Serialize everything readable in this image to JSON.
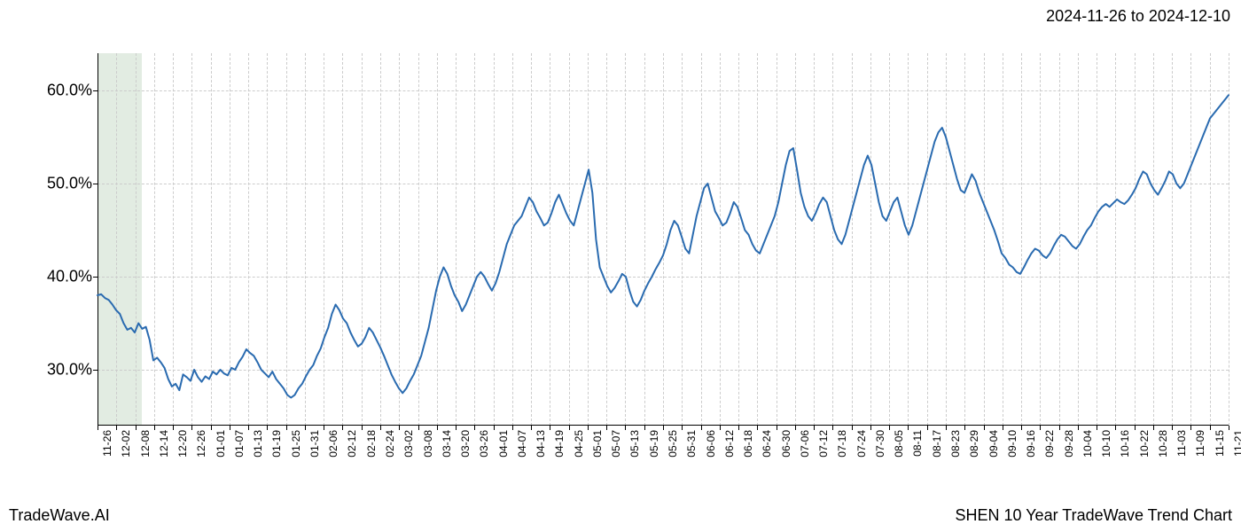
{
  "header": {
    "date_range": "2024-11-26 to 2024-12-10"
  },
  "footer": {
    "brand": "TradeWave.AI",
    "chart_title": "SHEN 10 Year TradeWave Trend Chart"
  },
  "chart": {
    "type": "line",
    "background_color": "#ffffff",
    "grid_color": "#cccccc",
    "axis_color": "#000000",
    "line_color": "#2a6bb0",
    "line_width": 2.0,
    "highlight_band": {
      "start_label": "11-26",
      "end_label": "12-10",
      "fill_color": "rgba(140,180,140,0.25)"
    },
    "y_axis": {
      "min": 24,
      "max": 64,
      "ticks": [
        30.0,
        40.0,
        50.0,
        60.0
      ],
      "tick_labels": [
        "30.0%",
        "40.0%",
        "50.0%",
        "60.0%"
      ],
      "label_fontsize": 18
    },
    "x_axis": {
      "labels": [
        "11-26",
        "12-02",
        "12-08",
        "12-14",
        "12-20",
        "12-26",
        "01-01",
        "01-07",
        "01-13",
        "01-19",
        "01-25",
        "01-31",
        "02-06",
        "02-12",
        "02-18",
        "02-24",
        "03-02",
        "03-08",
        "03-14",
        "03-20",
        "03-26",
        "04-01",
        "04-07",
        "04-13",
        "04-19",
        "04-25",
        "05-01",
        "05-07",
        "05-13",
        "05-19",
        "05-25",
        "05-31",
        "06-06",
        "06-12",
        "06-18",
        "06-24",
        "06-30",
        "07-06",
        "07-12",
        "07-18",
        "07-24",
        "07-30",
        "08-05",
        "08-11",
        "08-17",
        "08-23",
        "08-29",
        "09-04",
        "09-10",
        "09-16",
        "09-22",
        "09-28",
        "10-04",
        "10-10",
        "10-16",
        "10-22",
        "10-28",
        "11-03",
        "11-09",
        "11-15",
        "11-21"
      ],
      "label_fontsize": 12,
      "rotation": -90
    },
    "series": {
      "values": [
        38.0,
        38.1,
        37.7,
        37.5,
        37.0,
        36.4,
        36.0,
        35.0,
        34.3,
        34.5,
        34.0,
        35.0,
        34.4,
        34.6,
        33.2,
        31.0,
        31.3,
        30.8,
        30.2,
        29.0,
        28.2,
        28.5,
        27.8,
        29.5,
        29.2,
        28.8,
        30.0,
        29.2,
        28.7,
        29.3,
        29.0,
        29.8,
        29.5,
        30.0,
        29.6,
        29.4,
        30.2,
        30.0,
        30.8,
        31.4,
        32.2,
        31.8,
        31.5,
        30.8,
        30.0,
        29.6,
        29.2,
        29.8,
        29.0,
        28.5,
        28.0,
        27.3,
        27.0,
        27.3,
        28.0,
        28.5,
        29.3,
        30.0,
        30.5,
        31.5,
        32.3,
        33.5,
        34.5,
        36.0,
        37.0,
        36.4,
        35.5,
        35.0,
        34.0,
        33.2,
        32.5,
        32.8,
        33.5,
        34.5,
        34.0,
        33.2,
        32.4,
        31.5,
        30.5,
        29.5,
        28.7,
        28.0,
        27.5,
        28.0,
        28.8,
        29.5,
        30.5,
        31.5,
        33.0,
        34.5,
        36.5,
        38.5,
        40.0,
        41.0,
        40.3,
        39.0,
        38.0,
        37.3,
        36.3,
        37.0,
        38.0,
        39.0,
        40.0,
        40.5,
        40.0,
        39.2,
        38.5,
        39.3,
        40.5,
        42.0,
        43.5,
        44.5,
        45.5,
        46.0,
        46.5,
        47.5,
        48.5,
        48.0,
        47.0,
        46.3,
        45.5,
        45.8,
        46.8,
        48.0,
        48.8,
        47.8,
        46.8,
        46.0,
        45.5,
        47.0,
        48.5,
        50.0,
        51.5,
        49.0,
        44.0,
        41.0,
        40.0,
        39.0,
        38.3,
        38.8,
        39.5,
        40.3,
        40.0,
        38.5,
        37.3,
        36.8,
        37.5,
        38.5,
        39.3,
        40.0,
        40.8,
        41.5,
        42.3,
        43.5,
        45.0,
        46.0,
        45.5,
        44.3,
        43.0,
        42.5,
        44.5,
        46.5,
        48.0,
        49.5,
        50.0,
        48.5,
        47.0,
        46.3,
        45.5,
        45.8,
        46.8,
        48.0,
        47.5,
        46.3,
        45.0,
        44.5,
        43.5,
        42.8,
        42.5,
        43.5,
        44.5,
        45.5,
        46.5,
        48.0,
        50.0,
        52.0,
        53.5,
        53.8,
        51.5,
        49.0,
        47.5,
        46.5,
        46.0,
        46.8,
        47.8,
        48.5,
        48.0,
        46.5,
        45.0,
        44.0,
        43.5,
        44.5,
        46.0,
        47.5,
        49.0,
        50.5,
        52.0,
        53.0,
        52.0,
        50.0,
        48.0,
        46.5,
        46.0,
        47.0,
        48.0,
        48.5,
        47.0,
        45.5,
        44.5,
        45.5,
        47.0,
        48.5,
        50.0,
        51.5,
        53.0,
        54.5,
        55.5,
        56.0,
        55.0,
        53.5,
        52.0,
        50.5,
        49.3,
        49.0,
        50.0,
        51.0,
        50.3,
        49.0,
        48.0,
        47.0,
        46.0,
        45.0,
        43.8,
        42.5,
        42.0,
        41.3,
        41.0,
        40.5,
        40.3,
        41.0,
        41.8,
        42.5,
        43.0,
        42.8,
        42.3,
        42.0,
        42.5,
        43.3,
        44.0,
        44.5,
        44.3,
        43.8,
        43.3,
        43.0,
        43.5,
        44.3,
        45.0,
        45.5,
        46.3,
        47.0,
        47.5,
        47.8,
        47.5,
        47.9,
        48.3,
        48.0,
        47.8,
        48.2,
        48.8,
        49.5,
        50.5,
        51.3,
        51.0,
        50.0,
        49.3,
        48.8,
        49.5,
        50.3,
        51.3,
        51.0,
        50.0,
        49.5,
        50.0,
        51.0,
        52.0,
        53.0,
        54.0,
        55.0,
        56.0,
        57.0,
        57.5,
        58.0,
        58.5,
        59.0,
        59.5
      ]
    }
  }
}
